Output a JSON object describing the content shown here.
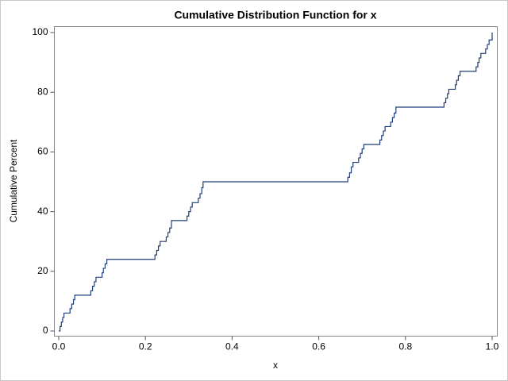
{
  "chart_data": {
    "type": "line",
    "title": "Cumulative Distribution Function for x",
    "x_label": "x",
    "y_label": "Cumulative Percent",
    "xlim": [
      0,
      1
    ],
    "ylim": [
      0,
      100
    ],
    "xticks": [
      {
        "value": 0,
        "label": "0.0"
      },
      0.2,
      0.4,
      0.6,
      0.8,
      {
        "value": 1,
        "label": "1.0"
      }
    ],
    "yticks": [
      0,
      20,
      40,
      60,
      80,
      100
    ],
    "step": true,
    "series": [
      {
        "name": "x",
        "color": "#1f3d7a",
        "x": [
          0,
          0.003,
          0.006,
          0.009,
          0.012,
          0.026,
          0.03,
          0.034,
          0.037,
          0.074,
          0.078,
          0.082,
          0.086,
          0.1,
          0.103,
          0.107,
          0.111,
          0.222,
          0.226,
          0.23,
          0.234,
          0.248,
          0.252,
          0.256,
          0.26,
          0.296,
          0.3,
          0.304,
          0.308,
          0.322,
          0.326,
          0.33,
          0.333,
          0.667,
          0.671,
          0.675,
          0.679,
          0.692,
          0.696,
          0.7,
          0.704,
          0.741,
          0.745,
          0.749,
          0.753,
          0.766,
          0.77,
          0.774,
          0.778,
          0.889,
          0.893,
          0.897,
          0.9,
          0.915,
          0.918,
          0.922,
          0.926,
          0.963,
          0.967,
          0.97,
          0.974,
          0.985,
          0.989,
          0.993,
          1
        ],
        "values": [
          0,
          1.5,
          3,
          4.5,
          6,
          7.5,
          9,
          10.5,
          12,
          13.5,
          15,
          16.5,
          18,
          19.5,
          21,
          22.5,
          24,
          25.5,
          27,
          28.5,
          30,
          31.5,
          33,
          34.5,
          37,
          38.5,
          40,
          41.5,
          43,
          44.5,
          46,
          48,
          50,
          51.5,
          53,
          55,
          56.5,
          58,
          59.5,
          61,
          62.5,
          64,
          65.5,
          67,
          68.5,
          70,
          71.5,
          73,
          75,
          76.5,
          78,
          79.5,
          81,
          82.5,
          84,
          85.5,
          87,
          88.5,
          90,
          91.5,
          93,
          94.5,
          96,
          97.5,
          100
        ]
      }
    ]
  }
}
